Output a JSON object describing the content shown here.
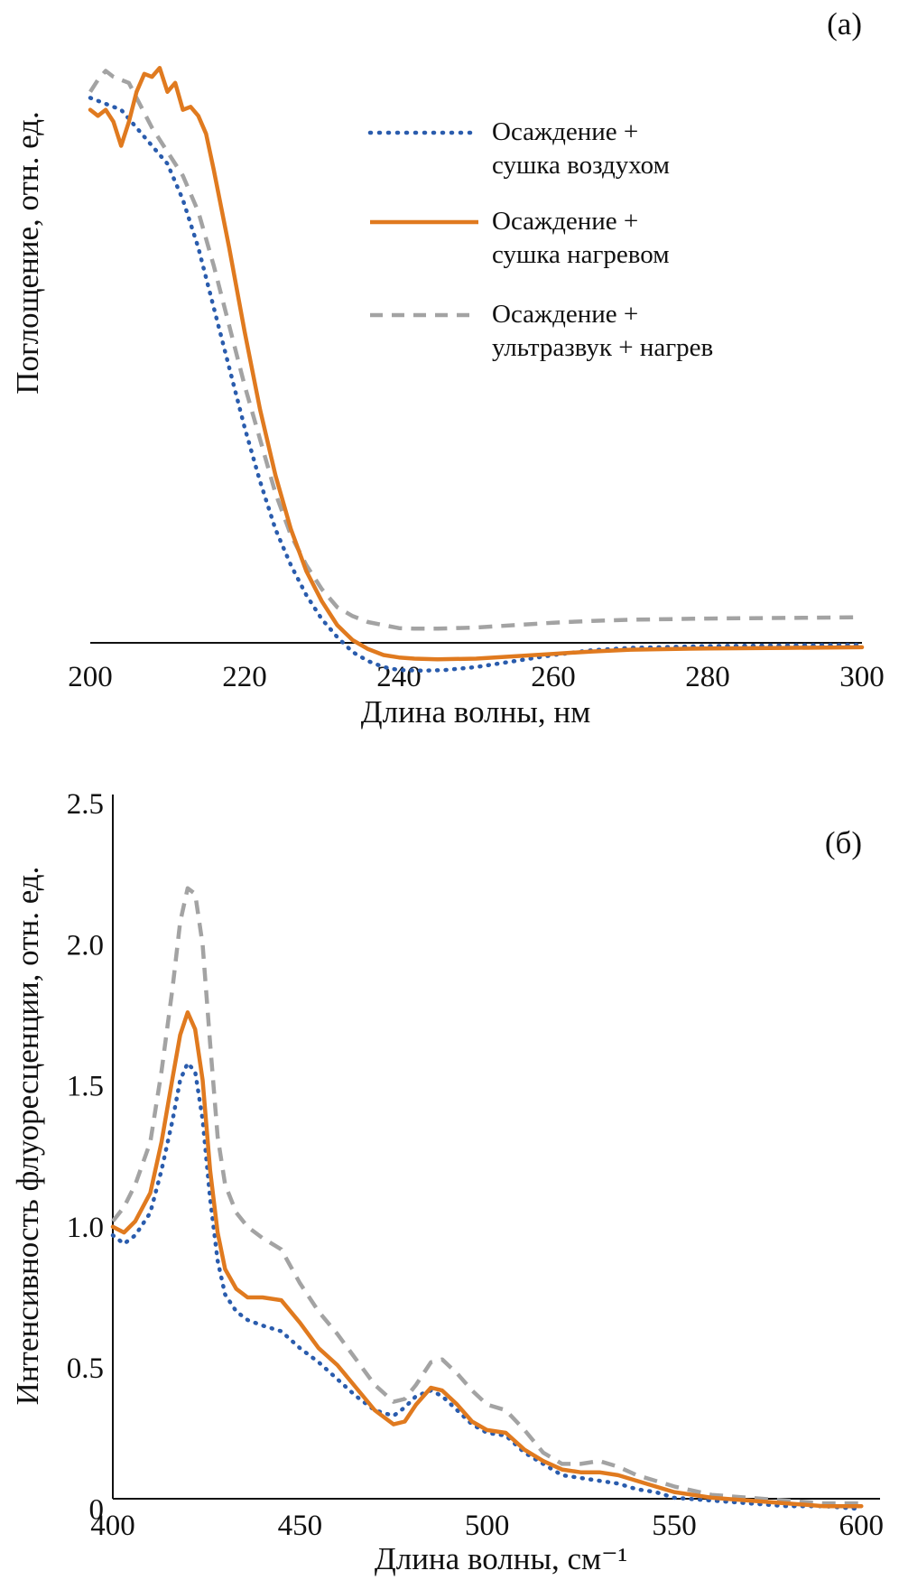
{
  "colors": {
    "air_dried": "#2a5cad",
    "heat_dried": "#e07a1f",
    "ultrasound": "#a3a3a3",
    "axis": "#111111"
  },
  "legend": [
    {
      "series_key": "air",
      "line1": "Осаждение +",
      "line2": "сушка воздухом"
    },
    {
      "series_key": "heat",
      "line1": "Осаждение +",
      "line2": "сушка нагревом"
    },
    {
      "series_key": "us",
      "line1": "Осаждение +",
      "line2": "ультразвук + нагрев"
    }
  ],
  "chart_data": [
    {
      "type": "line",
      "panel_label": "(а)",
      "xlabel": "Длина волны, нм",
      "ylabel": "Поглощение, отн. ед.",
      "xlim": [
        200,
        300
      ],
      "ylim": [
        -0.05,
        1.05
      ],
      "xticks": [
        200,
        220,
        240,
        260,
        280,
        300
      ],
      "y_tick_labels": "none",
      "legend_position": "top-right",
      "series": [
        {
          "key": "air",
          "name": "Осаждение + сушка воздухом",
          "style": "dotted",
          "x": [
            200,
            202,
            204,
            206,
            208,
            210,
            212,
            214,
            216,
            218,
            220,
            222,
            224,
            226,
            228,
            230,
            232,
            234,
            236,
            238,
            240,
            243,
            246,
            250,
            255,
            260,
            265,
            270,
            280,
            290,
            300
          ],
          "y": [
            0.95,
            0.94,
            0.93,
            0.9,
            0.87,
            0.84,
            0.78,
            0.7,
            0.6,
            0.5,
            0.4,
            0.31,
            0.23,
            0.17,
            0.12,
            0.08,
            0.05,
            0.025,
            0.01,
            0.0,
            -0.005,
            -0.006,
            -0.005,
            0.0,
            0.01,
            0.02,
            0.028,
            0.032,
            0.035,
            0.036,
            0.037
          ]
        },
        {
          "key": "heat",
          "name": "Осаждение + сушка нагревом",
          "style": "solid",
          "x": [
            200,
            201,
            202,
            203,
            204,
            205,
            206,
            207,
            208,
            209,
            210,
            211,
            212,
            213,
            214,
            215,
            216,
            218,
            220,
            222,
            224,
            226,
            228,
            230,
            232,
            234,
            236,
            238,
            240,
            242,
            245,
            250,
            255,
            260,
            265,
            270,
            280,
            290,
            300
          ],
          "y": [
            0.93,
            0.92,
            0.93,
            0.91,
            0.87,
            0.91,
            0.96,
            0.99,
            0.985,
            1.0,
            0.96,
            0.975,
            0.93,
            0.935,
            0.92,
            0.89,
            0.83,
            0.7,
            0.56,
            0.43,
            0.32,
            0.23,
            0.16,
            0.11,
            0.07,
            0.045,
            0.03,
            0.02,
            0.016,
            0.014,
            0.013,
            0.014,
            0.018,
            0.022,
            0.026,
            0.029,
            0.031,
            0.032,
            0.033
          ]
        },
        {
          "key": "us",
          "name": "Осаждение + ультразвук + нагрев",
          "style": "dashed",
          "x": [
            200,
            201,
            202,
            203,
            204,
            205,
            206,
            208,
            210,
            212,
            214,
            216,
            218,
            220,
            222,
            224,
            226,
            228,
            230,
            232,
            234,
            236,
            238,
            240,
            242,
            245,
            250,
            255,
            260,
            265,
            270,
            280,
            290,
            300
          ],
          "y": [
            0.96,
            0.98,
            0.995,
            0.985,
            0.98,
            0.975,
            0.95,
            0.9,
            0.86,
            0.82,
            0.76,
            0.67,
            0.57,
            0.47,
            0.38,
            0.29,
            0.22,
            0.17,
            0.13,
            0.1,
            0.085,
            0.075,
            0.07,
            0.065,
            0.064,
            0.064,
            0.066,
            0.07,
            0.074,
            0.077,
            0.079,
            0.081,
            0.082,
            0.083
          ]
        }
      ]
    },
    {
      "type": "line",
      "panel_label": "(б)",
      "xlabel": "Длина волны, см⁻¹",
      "ylabel": "Интенсивность флуоресценции, отн. ед.",
      "xlim": [
        400,
        605
      ],
      "ylim": [
        -0.05,
        2.5
      ],
      "xticks": [
        400,
        450,
        500,
        550,
        600
      ],
      "yticks": [
        0,
        0.5,
        1.0,
        1.5,
        2.0,
        2.5
      ],
      "ytick_labels": [
        "0",
        "0.5",
        "1.0",
        "1.5",
        "2.0",
        "2.5"
      ],
      "series": [
        {
          "key": "air",
          "name": "Осаждение + сушка воздухом",
          "style": "dotted",
          "x": [
            400,
            403,
            406,
            410,
            413,
            416,
            418,
            420,
            422,
            424,
            426,
            428,
            430,
            433,
            436,
            440,
            445,
            450,
            455,
            460,
            465,
            470,
            475,
            478,
            481,
            485,
            488,
            492,
            496,
            500,
            505,
            510,
            515,
            520,
            525,
            530,
            535,
            540,
            545,
            550,
            560,
            570,
            580,
            590,
            600
          ],
          "y": [
            0.97,
            0.94,
            0.97,
            1.05,
            1.2,
            1.38,
            1.52,
            1.58,
            1.55,
            1.38,
            1.1,
            0.88,
            0.76,
            0.7,
            0.67,
            0.65,
            0.63,
            0.57,
            0.52,
            0.46,
            0.4,
            0.35,
            0.33,
            0.36,
            0.4,
            0.42,
            0.4,
            0.35,
            0.3,
            0.27,
            0.26,
            0.2,
            0.16,
            0.12,
            0.11,
            0.1,
            0.09,
            0.07,
            0.06,
            0.04,
            0.03,
            0.02,
            0.01,
            0.01,
            0.0
          ]
        },
        {
          "key": "heat",
          "name": "Осаждение + сушка нагревом",
          "style": "solid",
          "x": [
            400,
            403,
            406,
            410,
            413,
            416,
            418,
            420,
            422,
            424,
            426,
            428,
            430,
            433,
            436,
            440,
            445,
            450,
            455,
            460,
            465,
            470,
            475,
            478,
            481,
            485,
            488,
            492,
            496,
            500,
            505,
            510,
            515,
            520,
            525,
            530,
            535,
            540,
            545,
            550,
            560,
            570,
            580,
            590,
            600
          ],
          "y": [
            1.0,
            0.98,
            1.02,
            1.12,
            1.3,
            1.53,
            1.68,
            1.76,
            1.7,
            1.52,
            1.2,
            0.98,
            0.85,
            0.78,
            0.75,
            0.75,
            0.74,
            0.66,
            0.57,
            0.51,
            0.43,
            0.35,
            0.3,
            0.31,
            0.37,
            0.43,
            0.42,
            0.37,
            0.31,
            0.28,
            0.27,
            0.21,
            0.17,
            0.14,
            0.13,
            0.13,
            0.12,
            0.1,
            0.08,
            0.06,
            0.04,
            0.03,
            0.02,
            0.01,
            0.01
          ]
        },
        {
          "key": "us",
          "name": "Осаждение + ультразвук + нагрев",
          "style": "dashed",
          "x": [
            400,
            403,
            406,
            410,
            413,
            416,
            418,
            420,
            422,
            424,
            426,
            428,
            430,
            433,
            436,
            440,
            445,
            450,
            455,
            460,
            465,
            470,
            475,
            478,
            481,
            485,
            488,
            492,
            496,
            500,
            505,
            510,
            515,
            520,
            525,
            530,
            535,
            540,
            545,
            550,
            560,
            570,
            580,
            590,
            600
          ],
          "y": [
            1.02,
            1.07,
            1.15,
            1.3,
            1.55,
            1.85,
            2.08,
            2.2,
            2.18,
            2.0,
            1.65,
            1.32,
            1.15,
            1.05,
            1.0,
            0.96,
            0.92,
            0.8,
            0.7,
            0.62,
            0.53,
            0.44,
            0.38,
            0.39,
            0.44,
            0.52,
            0.53,
            0.48,
            0.42,
            0.37,
            0.35,
            0.28,
            0.2,
            0.16,
            0.16,
            0.17,
            0.15,
            0.12,
            0.1,
            0.08,
            0.05,
            0.04,
            0.03,
            0.02,
            0.02
          ]
        }
      ]
    }
  ]
}
